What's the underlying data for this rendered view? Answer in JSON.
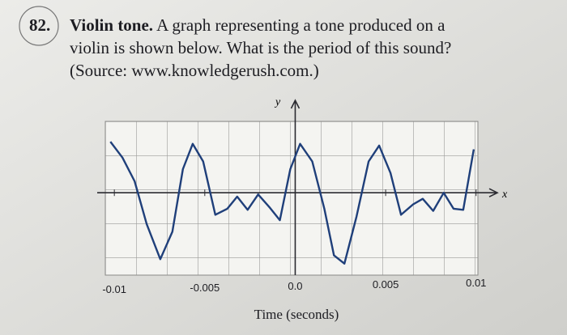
{
  "question": {
    "number": "82.",
    "heading": "Violin tone.",
    "lines": [
      " A graph representing a tone produced on a",
      "violin is shown below. What is the period of this sound?",
      "(Source: www.knowledgerush.com.)"
    ]
  },
  "chart_data": {
    "type": "line",
    "xlabel": "Time (seconds)",
    "x_axis_name": "x",
    "y_axis_name": "y",
    "x": [
      -0.01022,
      -0.00955,
      -0.00888,
      -0.00821,
      -0.00746,
      -0.00679,
      -0.00621,
      -0.00567,
      -0.00509,
      -0.00442,
      -0.00375,
      -0.00321,
      -0.00263,
      -0.00205,
      -0.00143,
      -0.00085,
      -0.00027,
      0.00027,
      0.00094,
      0.00161,
      0.00214,
      0.00272,
      0.00339,
      0.00406,
      0.00464,
      0.00527,
      0.00585,
      0.00652,
      0.00705,
      0.00763,
      0.00821,
      0.00875,
      0.00929,
      0.00987
    ],
    "values": [
      0.93,
      0.64,
      0.21,
      -0.57,
      -1.21,
      -0.71,
      0.43,
      0.89,
      0.57,
      -0.4,
      -0.29,
      -0.07,
      -0.31,
      -0.03,
      -0.26,
      -0.5,
      0.43,
      0.89,
      0.57,
      -0.29,
      -1.14,
      -1.29,
      -0.43,
      0.57,
      0.86,
      0.36,
      -0.4,
      -0.21,
      -0.11,
      -0.33,
      0,
      -0.29,
      -0.31,
      0.79
    ],
    "color": "#1f3f7a",
    "xlim": [
      -0.0105,
      0.0101
    ],
    "ylim": [
      -1.5,
      1.3
    ],
    "xticks": [
      -0.01,
      -0.005,
      {
        "value": 0,
        "label": "0.0"
      },
      0.005,
      0.01
    ],
    "grid": true
  }
}
